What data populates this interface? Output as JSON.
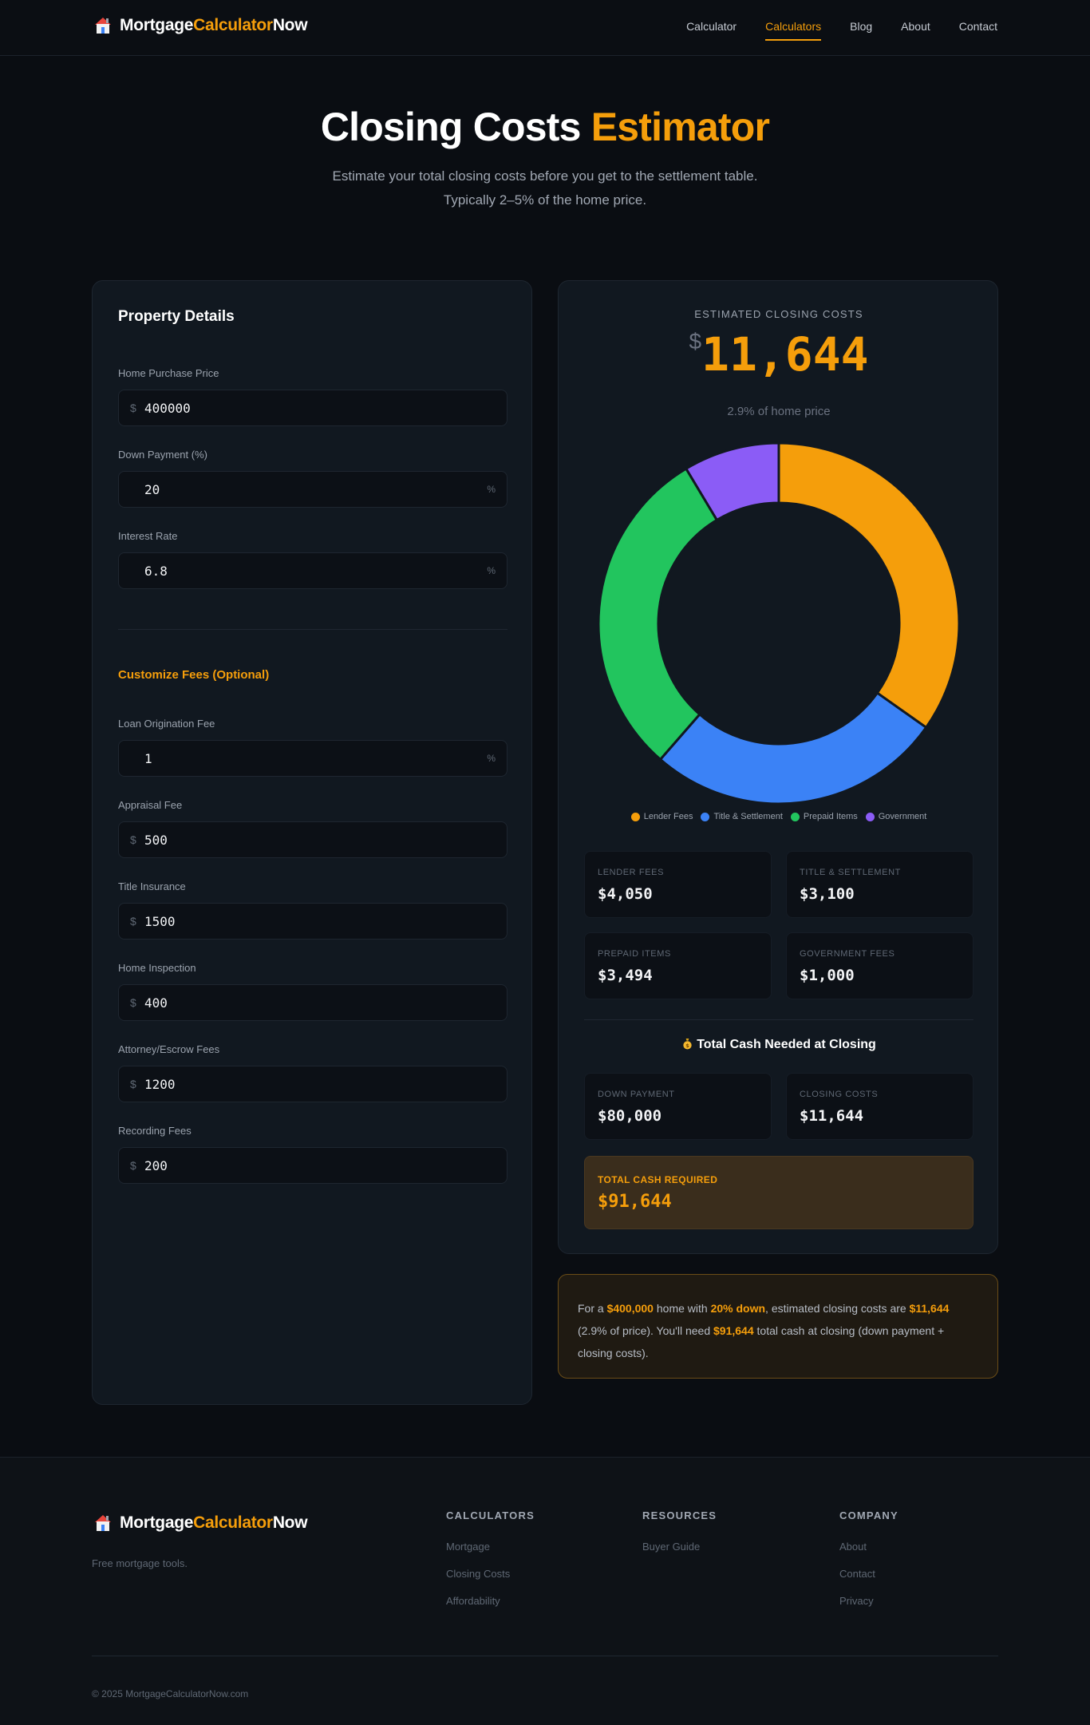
{
  "brand": {
    "part1": "Mortgage",
    "part2": "Calculator",
    "part3": "Now"
  },
  "nav": [
    {
      "label": "Calculator",
      "active": false
    },
    {
      "label": "Calculators",
      "active": true
    },
    {
      "label": "Blog",
      "active": false
    },
    {
      "label": "About",
      "active": false
    },
    {
      "label": "Contact",
      "active": false
    }
  ],
  "hero": {
    "title_main": "Closing Costs",
    "title_accent": "Estimator",
    "subtitle_line1": "Estimate your total closing costs before you get to the settlement table.",
    "subtitle_line2": "Typically 2–5% of the home price."
  },
  "property": {
    "title": "Property Details",
    "home_price": {
      "label": "Home Purchase Price",
      "prefix": "$",
      "value": "400000"
    },
    "down_payment": {
      "label": "Down Payment (%)",
      "value": "20",
      "suffix": "%"
    },
    "interest_rate": {
      "label": "Interest Rate",
      "value": "6.8",
      "suffix": "%"
    }
  },
  "fees": {
    "title": "Customize Fees (Optional)",
    "origination": {
      "label": "Loan Origination Fee",
      "value": "1",
      "suffix": "%"
    },
    "appraisal": {
      "label": "Appraisal Fee",
      "prefix": "$",
      "value": "500"
    },
    "title_insurance": {
      "label": "Title Insurance",
      "prefix": "$",
      "value": "1500"
    },
    "inspection": {
      "label": "Home Inspection",
      "prefix": "$",
      "value": "400"
    },
    "attorney": {
      "label": "Attorney/Escrow Fees",
      "prefix": "$",
      "value": "1200"
    },
    "recording": {
      "label": "Recording Fees",
      "prefix": "$",
      "value": "200"
    }
  },
  "results": {
    "estimated_label": "ESTIMATED CLOSING COSTS",
    "currency": "$",
    "estimated_value": "11,644",
    "percent_text": "2.9% of home price",
    "lender_fees": {
      "label": "LENDER FEES",
      "value": "$4,050"
    },
    "title_settlement": {
      "label": "TITLE & SETTLEMENT",
      "value": "$3,100"
    },
    "prepaid_items": {
      "label": "PREPAID ITEMS",
      "value": "$3,494"
    },
    "government_fees": {
      "label": "GOVERNMENT FEES",
      "value": "$1,000"
    },
    "cash_title": "Total Cash Needed at Closing",
    "down_payment": {
      "label": "DOWN PAYMENT",
      "value": "$80,000"
    },
    "closing_costs": {
      "label": "CLOSING COSTS",
      "value": "$11,644"
    },
    "total_cash": {
      "label": "TOTAL CASH REQUIRED",
      "value": "$91,644"
    }
  },
  "chart_data": {
    "type": "pie",
    "categories": [
      "Lender Fees",
      "Title & Settlement",
      "Prepaid Items",
      "Government"
    ],
    "values": [
      4050,
      3100,
      3494,
      1000
    ],
    "colors": [
      "#f59e0b",
      "#3b82f6",
      "#22c55e",
      "#8b5cf6"
    ],
    "legend": "bottom"
  },
  "summary": {
    "t1": "For a ",
    "b1": "$400,000",
    "t2": " home with ",
    "b2": "20% down",
    "t3": ", estimated closing costs are ",
    "b3": "$11,644",
    "t4": " (2.9% of price). You'll need ",
    "b4": "$91,644",
    "t5": " total cash at closing (down payment + closing costs)."
  },
  "footer": {
    "tagline": "Free mortgage tools.",
    "col1": {
      "title": "CALCULATORS",
      "links": [
        "Mortgage",
        "Closing Costs",
        "Affordability"
      ]
    },
    "col2": {
      "title": "RESOURCES",
      "links": [
        "Buyer Guide"
      ]
    },
    "col3": {
      "title": "COMPANY",
      "links": [
        "About",
        "Contact",
        "Privacy"
      ]
    },
    "copyright": "© 2025 MortgageCalculatorNow.com"
  },
  "icons": {
    "house": "house-icon",
    "money_bag": "money-bag-icon"
  }
}
